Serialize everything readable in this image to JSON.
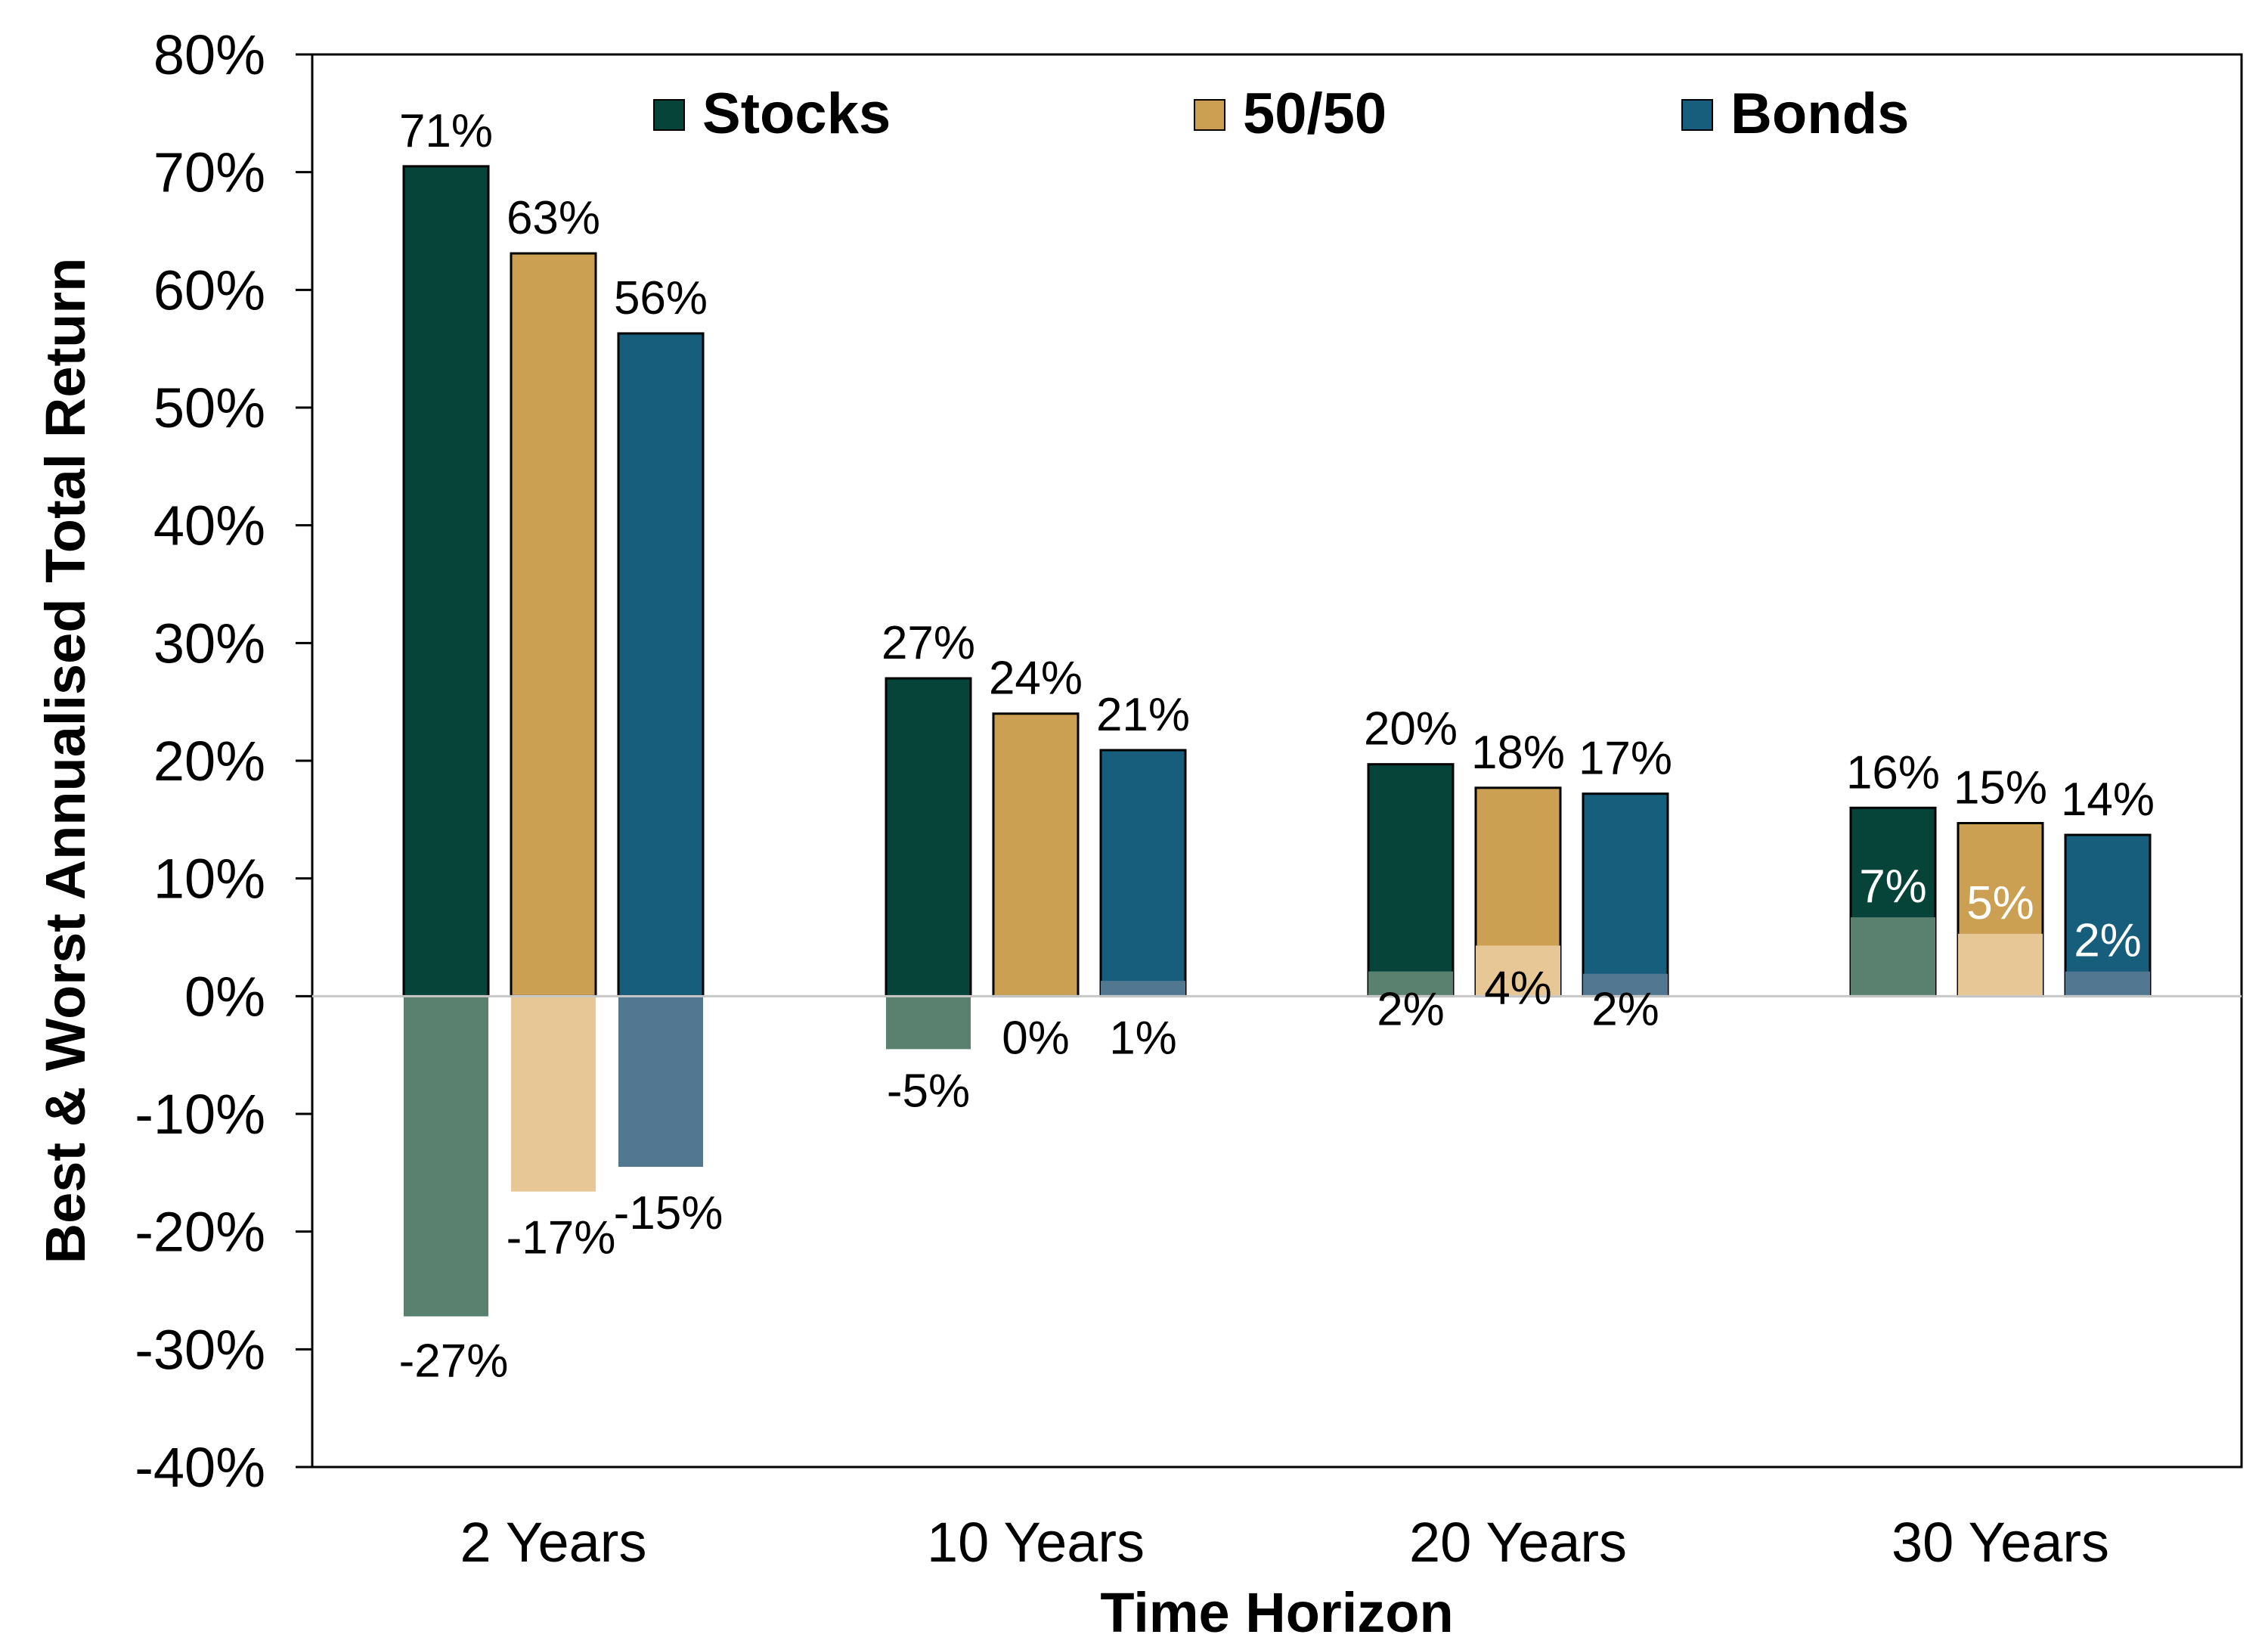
{
  "chart_data": {
    "type": "bar",
    "title": "",
    "xlabel": "Time Horizon",
    "ylabel": "Best & Worst Annualised Total Return",
    "ylim": [
      -40,
      80
    ],
    "yticks": [
      80,
      70,
      60,
      50,
      40,
      30,
      20,
      10,
      0,
      -10,
      -20,
      -30,
      -40
    ],
    "ytick_labels": [
      "80%",
      "70%",
      "60%",
      "50%",
      "40%",
      "30%",
      "20%",
      "10%",
      "0%",
      "-10%",
      "-20%",
      "-30%",
      "-40%"
    ],
    "categories": [
      "2 Years",
      "10 Years",
      "20 Years",
      "30 Years"
    ],
    "legend_position": "top",
    "grid": false,
    "series": [
      {
        "name": "Stocks",
        "color": "#06443a",
        "worst_color": "#5a8170",
        "best": [
          70.5,
          27,
          19.7,
          16
        ],
        "worst": [
          -27.2,
          -4.5,
          2.1,
          6.7
        ],
        "best_labels": [
          "71%",
          "27%",
          "20%",
          "16%"
        ],
        "worst_labels": [
          "-27%",
          "-5%",
          "2%",
          "7%"
        ]
      },
      {
        "name": "50/50",
        "color": "#cba052",
        "worst_color": "#e8c796",
        "best": [
          63.1,
          24,
          17.7,
          14.7
        ],
        "worst": [
          -16.6,
          0.1,
          4.3,
          5.3
        ],
        "best_labels": [
          "63%",
          "24%",
          "18%",
          "15%"
        ],
        "worst_labels": [
          "-17%",
          "0%",
          "4%",
          "5%"
        ]
      },
      {
        "name": "Bonds",
        "color": "#175d7c",
        "worst_color": "#517791",
        "best": [
          56.3,
          20.9,
          17.2,
          13.7
        ],
        "worst": [
          -14.5,
          1.3,
          1.9,
          2.1
        ],
        "best_labels": [
          "56%",
          "21%",
          "17%",
          "14%"
        ],
        "worst_labels": [
          "-15%",
          "1%",
          "2%",
          "2%"
        ]
      }
    ]
  }
}
